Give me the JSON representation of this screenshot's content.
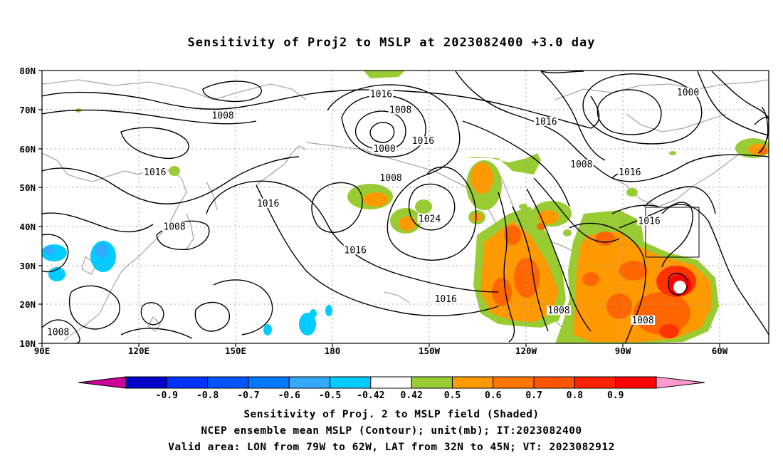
{
  "title": "Sensitivity of Proj2 to MSLP at 2023082400 +3.0 day",
  "map": {
    "lat_labels": [
      "80N",
      "70N",
      "60N",
      "50N",
      "40N",
      "30N",
      "20N",
      "10N"
    ],
    "lon_labels": [
      "90E",
      "120E",
      "150E",
      "180",
      "150W",
      "120W",
      "90W",
      "60W"
    ],
    "lon_range": [
      90,
      315
    ],
    "lat_range": [
      10,
      80
    ],
    "contour_labels": [
      {
        "text": "1016",
        "lon": 195,
        "lat": 73.5
      },
      {
        "text": "1008",
        "lon": 201,
        "lat": 69.5
      },
      {
        "text": "1008",
        "lon": 146,
        "lat": 68
      },
      {
        "text": "1016",
        "lon": 246,
        "lat": 66.5
      },
      {
        "text": "1000",
        "lon": 290,
        "lat": 74
      },
      {
        "text": "1016",
        "lon": 125,
        "lat": 53.5
      },
      {
        "text": "1016",
        "lon": 160,
        "lat": 45.5
      },
      {
        "text": "1008",
        "lon": 131,
        "lat": 39.5
      },
      {
        "text": "1000",
        "lon": 196,
        "lat": 59.5
      },
      {
        "text": "1016",
        "lon": 208,
        "lat": 61.5
      },
      {
        "text": "1008",
        "lon": 198,
        "lat": 52
      },
      {
        "text": "1024",
        "lon": 210,
        "lat": 41.5
      },
      {
        "text": "1016",
        "lon": 272,
        "lat": 53.5
      },
      {
        "text": "1008",
        "lon": 257,
        "lat": 55.5
      },
      {
        "text": "1016",
        "lon": 187,
        "lat": 33.5
      },
      {
        "text": "1016",
        "lon": 215,
        "lat": 21
      },
      {
        "text": "1016",
        "lon": 278,
        "lat": 41
      },
      {
        "text": "1008",
        "lon": 250,
        "lat": 18
      },
      {
        "text": "1008",
        "lon": 276,
        "lat": 15.5
      },
      {
        "text": "1008",
        "lon": 95,
        "lat": 12.5
      }
    ],
    "valid_box": {
      "lon_min": 281,
      "lon_max": 298,
      "lat_min": 32,
      "lat_max": 45
    },
    "colors": {
      "contour": "#000000",
      "coast": "#a9a9a9",
      "grid": "#a0a0a0",
      "green": "#99cc33",
      "orange": "#ff9900",
      "dark_orange": "#ff6600",
      "red_orange": "#ff3300",
      "red": "#ff0000",
      "light_blue": "#00ccff",
      "mid_blue": "#3399ff"
    }
  },
  "colorbar": {
    "labels": [
      "-0.9",
      "-0.8",
      "-0.7",
      "-0.6",
      "-0.5",
      "-0.42",
      "0.42",
      "0.5",
      "0.6",
      "0.7",
      "0.8",
      "0.9"
    ],
    "colors": [
      "#0000c8",
      "#0033ff",
      "#0055ff",
      "#0077ff",
      "#33aaff",
      "#00ccff",
      "#ffffff",
      "#99cc33",
      "#ff9900",
      "#ff7700",
      "#ff5500",
      "#ff2200",
      "#ff0000"
    ],
    "low_end_color": "#cc0099",
    "high_end_color": "#ff99cc"
  },
  "captions": [
    "Sensitivity of Proj. 2 to MSLP field (Shaded)",
    "NCEP ensemble mean MSLP (Contour); unit(mb); IT:2023082400",
    "Valid area: LON from 79W to 62W, LAT from 32N to 45N; VT: 2023082912"
  ]
}
